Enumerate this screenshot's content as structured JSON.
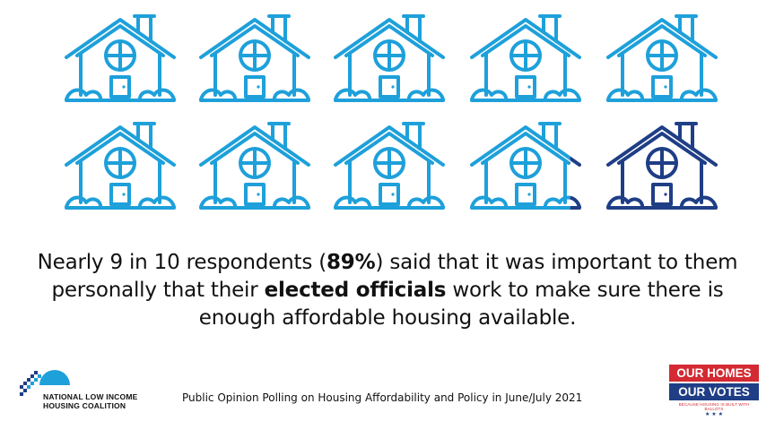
{
  "colors": {
    "house_light": "#1ea0da",
    "house_dark": "#1f3e86",
    "text": "#111111",
    "badge_red": "#d32a33",
    "badge_navy": "#1f3e86"
  },
  "houses": {
    "total": 10,
    "filled_fraction": 0.89,
    "filled_color": "house_light",
    "remaining_color": "house_dark"
  },
  "statement": {
    "part1": "Nearly 9 in 10 respondents (",
    "percent": "89%",
    "part2": ") said that it was important to them personally that their ",
    "highlight": "elected officials",
    "part3": " work to make sure there is enough affordable housing available."
  },
  "footer": {
    "caption": "Public Opinion Polling on Housing Affordability and Policy in June/July 2021",
    "org_line1": "NATIONAL LOW INCOME",
    "org_line2": "HOUSING COALITION",
    "badge_line1": "OUR HOMES",
    "badge_line2": "OUR VOTES",
    "badge_tagline": "BECAUSE HOUSING IS BUILT WITH BALLOTS",
    "badge_stars": "★ ★ ★"
  }
}
